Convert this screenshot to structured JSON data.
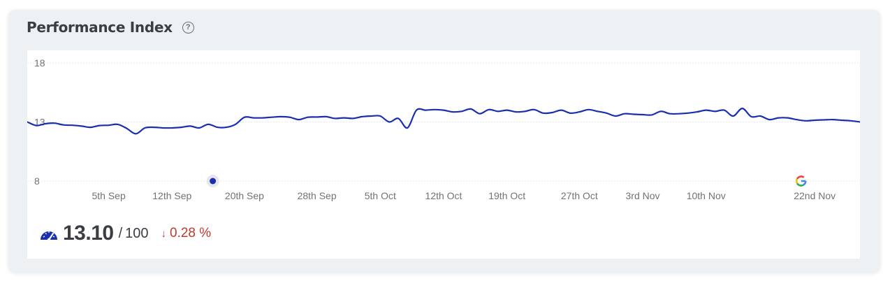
{
  "header": {
    "title": "Performance Index",
    "help_icon": "question-circle-icon"
  },
  "score": {
    "value": "13.10",
    "separator": "/",
    "max": "100",
    "change_direction": "down",
    "change_value": "0.28 %",
    "icon": "speedometer-icon"
  },
  "colors": {
    "line": "#1a2fb0",
    "grid": "#e6e8eb",
    "tick_text": "#6f7377",
    "change_negative": "#c0392b",
    "card_bg": "#eef1f4"
  },
  "chart_data": {
    "type": "line",
    "title": "",
    "xlabel": "",
    "ylabel": "",
    "ylim": [
      8,
      18
    ],
    "yticks": [
      "18",
      "13",
      "8"
    ],
    "grid": true,
    "xtick_labels": [
      "5th Sep",
      "12th Sep",
      "20th Sep",
      "28th Sep",
      "5th Oct",
      "12th Oct",
      "19th Oct",
      "27th Oct",
      "3rd Nov",
      "10th Nov",
      "22nd Nov"
    ],
    "xtick_days": [
      5,
      12,
      20,
      28,
      35,
      42,
      49,
      57,
      64,
      71,
      83
    ],
    "x_start_day": -4,
    "x_end_day": 88,
    "series": [
      {
        "points": [
          [
            -4,
            13.0
          ],
          [
            -3,
            12.7
          ],
          [
            -2,
            12.85
          ],
          [
            -1,
            12.9
          ],
          [
            0,
            12.75
          ],
          [
            1,
            12.72
          ],
          [
            2,
            12.65
          ],
          [
            3,
            12.55
          ],
          [
            4,
            12.7
          ],
          [
            5,
            12.72
          ],
          [
            6,
            12.8
          ],
          [
            7,
            12.45
          ],
          [
            8,
            12.0
          ],
          [
            9,
            12.5
          ],
          [
            10,
            12.55
          ],
          [
            11,
            12.5
          ],
          [
            12,
            12.5
          ],
          [
            13,
            12.55
          ],
          [
            14,
            12.65
          ],
          [
            15,
            12.5
          ],
          [
            16,
            12.8
          ],
          [
            17,
            12.55
          ],
          [
            18,
            12.55
          ],
          [
            19,
            12.8
          ],
          [
            20,
            13.4
          ],
          [
            21,
            13.35
          ],
          [
            22,
            13.35
          ],
          [
            23,
            13.4
          ],
          [
            24,
            13.45
          ],
          [
            25,
            13.4
          ],
          [
            26,
            13.2
          ],
          [
            27,
            13.4
          ],
          [
            28,
            13.42
          ],
          [
            29,
            13.45
          ],
          [
            30,
            13.3
          ],
          [
            31,
            13.35
          ],
          [
            32,
            13.3
          ],
          [
            33,
            13.45
          ],
          [
            34,
            13.5
          ],
          [
            35,
            13.5
          ],
          [
            36,
            13.0
          ],
          [
            37,
            13.3
          ],
          [
            38,
            12.5
          ],
          [
            39,
            14.0
          ],
          [
            40,
            14.0
          ],
          [
            41,
            14.05
          ],
          [
            42,
            14.0
          ],
          [
            43,
            13.85
          ],
          [
            44,
            13.9
          ],
          [
            45,
            14.1
          ],
          [
            46,
            13.7
          ],
          [
            47,
            14.05
          ],
          [
            48,
            13.9
          ],
          [
            49,
            14.0
          ],
          [
            50,
            13.85
          ],
          [
            51,
            13.9
          ],
          [
            52,
            14.05
          ],
          [
            53,
            13.75
          ],
          [
            54,
            13.8
          ],
          [
            55,
            14.0
          ],
          [
            56,
            13.75
          ],
          [
            57,
            13.85
          ],
          [
            58,
            14.05
          ],
          [
            59,
            13.9
          ],
          [
            60,
            13.75
          ],
          [
            61,
            13.5
          ],
          [
            62,
            13.7
          ],
          [
            63,
            13.65
          ],
          [
            64,
            13.62
          ],
          [
            65,
            13.6
          ],
          [
            66,
            13.9
          ],
          [
            67,
            13.7
          ],
          [
            68,
            13.7
          ],
          [
            69,
            13.75
          ],
          [
            70,
            13.85
          ],
          [
            71,
            14.0
          ],
          [
            72,
            13.9
          ],
          [
            73,
            14.0
          ],
          [
            74,
            13.5
          ],
          [
            75,
            14.15
          ],
          [
            76,
            13.45
          ],
          [
            77,
            13.5
          ],
          [
            78,
            13.2
          ],
          [
            79,
            13.35
          ],
          [
            80,
            13.35
          ],
          [
            81,
            13.2
          ],
          [
            82,
            13.1
          ],
          [
            83,
            13.15
          ],
          [
            84,
            13.18
          ],
          [
            85,
            13.2
          ],
          [
            86,
            13.15
          ],
          [
            87,
            13.1
          ],
          [
            88,
            13.0
          ]
        ]
      }
    ],
    "annotations": [
      {
        "day": 16.5,
        "kind": "event-marker",
        "icon": "dot-icon"
      },
      {
        "day": 81.5,
        "kind": "google-update",
        "icon": "google-icon"
      }
    ]
  }
}
